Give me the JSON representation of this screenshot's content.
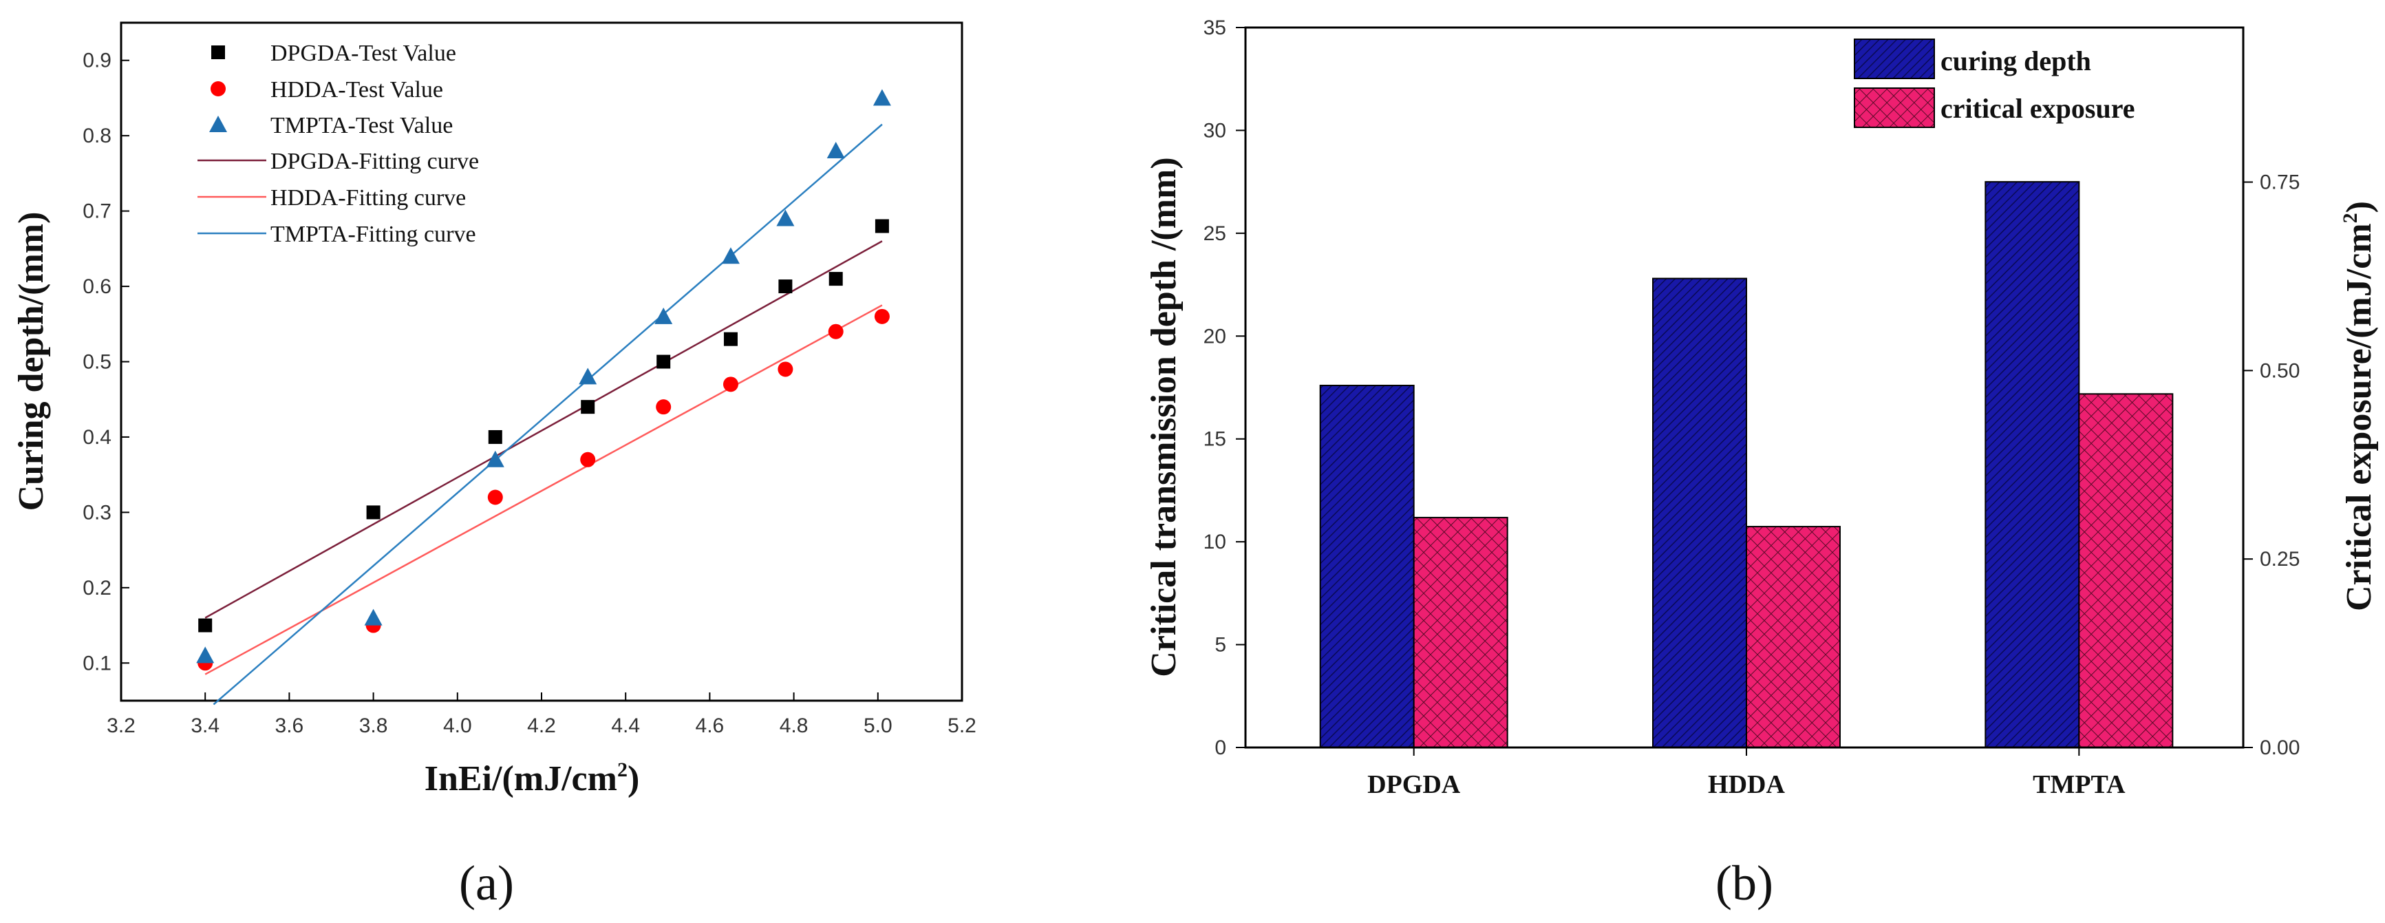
{
  "colors": {
    "dpgda": "#000000",
    "hdda": "#ff0000",
    "tmpta": "#1f6fb0",
    "dpgda_fit": "#7b1f3a",
    "hdda_fit": "#ff5a5a",
    "tmpta_fit": "#2a7fc0",
    "bar_blue": "#1a1aa0",
    "bar_pink": "#e8186a"
  },
  "panels": {
    "a_label": "(a)",
    "b_label": "(b)"
  },
  "chart_data": [
    {
      "type": "scatter",
      "title": "",
      "xlabel": "lnEi/(mJ/cm²)",
      "xlabel_main": "InEi/(mJ/cm",
      "xlabel_sup": "2",
      "xlabel_end": ")",
      "ylabel": "Curing depth/(mm)",
      "xlim": [
        3.2,
        5.2
      ],
      "ylim": [
        0.05,
        0.95
      ],
      "xticks": [
        "3.2",
        "3.4",
        "3.6",
        "3.8",
        "4.0",
        "4.2",
        "4.4",
        "4.6",
        "4.8",
        "5.0",
        "5.2"
      ],
      "yticks": [
        "0.1",
        "0.2",
        "0.3",
        "0.4",
        "0.5",
        "0.6",
        "0.7",
        "0.8",
        "0.9"
      ],
      "x": [
        3.4,
        3.8,
        4.09,
        4.31,
        4.49,
        4.65,
        4.78,
        4.9,
        5.01
      ],
      "series": [
        {
          "name": "DPGDA-Test Value",
          "marker": "square",
          "values": [
            0.15,
            0.3,
            0.4,
            0.44,
            0.5,
            0.53,
            0.6,
            0.61,
            0.68
          ]
        },
        {
          "name": "HDDA-Test Value",
          "marker": "circle",
          "values": [
            0.1,
            0.15,
            0.32,
            0.37,
            0.44,
            0.47,
            0.49,
            0.54,
            0.56
          ]
        },
        {
          "name": "TMPTA-Test Value",
          "marker": "triangle",
          "values": [
            0.11,
            0.16,
            0.37,
            0.48,
            0.56,
            0.64,
            0.69,
            0.78,
            0.85
          ]
        }
      ],
      "fits": [
        {
          "name": "DPGDA-Fitting curve",
          "x": [
            3.4,
            5.01
          ],
          "y": [
            0.16,
            0.66
          ]
        },
        {
          "name": "HDDA-Fitting curve",
          "x": [
            3.4,
            5.01
          ],
          "y": [
            0.085,
            0.575
          ]
        },
        {
          "name": "TMPTA-Fitting curve",
          "x": [
            3.42,
            5.01
          ],
          "y": [
            0.045,
            0.815
          ]
        }
      ],
      "legend_position": "top-left"
    },
    {
      "type": "bar",
      "title": "",
      "categories": [
        "DPGDA",
        "HDDA",
        "TMPTA"
      ],
      "ylabel": "Critical transmission depth /(mm)",
      "ylabel_right_main": "Critical exposure/(mJ/cm",
      "ylabel_right_sup": "2",
      "ylabel_right_end": ")",
      "ylim": [
        0,
        35
      ],
      "ylim_right": [
        0,
        0.955
      ],
      "yticks": [
        "0",
        "5",
        "10",
        "15",
        "20",
        "25",
        "30",
        "35"
      ],
      "yticks_right": [
        "0.00",
        "0.25",
        "0.50",
        "0.75"
      ],
      "series": [
        {
          "name": "curing depth",
          "axis": "left",
          "values": [
            17.6,
            22.8,
            27.5
          ]
        },
        {
          "name": "critical exposure",
          "axis": "right",
          "values": [
            0.305,
            0.293,
            0.469
          ]
        }
      ],
      "legend_position": "top-right"
    }
  ]
}
